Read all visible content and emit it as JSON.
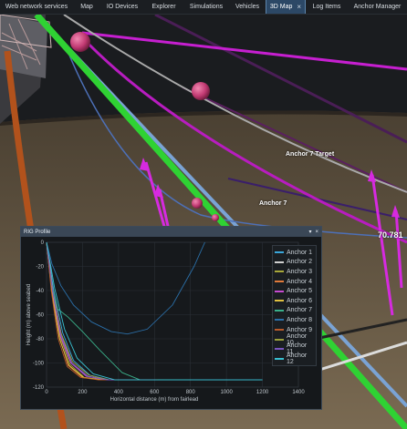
{
  "tabs": [
    {
      "label": "Web network services",
      "active": false
    },
    {
      "label": "Map",
      "active": false
    },
    {
      "label": "IO Devices",
      "active": false
    },
    {
      "label": "Explorer",
      "active": false
    },
    {
      "label": "Simulations",
      "active": false
    },
    {
      "label": "Vehicles",
      "active": false
    },
    {
      "label": "3D Map",
      "active": true,
      "close_icon": "×"
    },
    {
      "label": "Log Items",
      "active": false
    },
    {
      "label": "Anchor Manager",
      "active": false
    }
  ],
  "scene": {
    "labels": {
      "anchor7_target": "Anchor 7 Target",
      "anchor7": "Anchor 7",
      "distance_readout": "70.781"
    },
    "colors": {
      "ground": "#5a4c3c",
      "sky": "#1a1c1f",
      "chain_green": "#2fd233",
      "cable_blue": "#7aa3d4",
      "cable_magenta": "#c61fd0",
      "buoy": "#c23a73"
    }
  },
  "rig_panel": {
    "title": "RIG Profile",
    "controls": {
      "dropdown": "▾",
      "close": "×"
    }
  },
  "chart_data": {
    "type": "line",
    "title": "",
    "xlabel": "Horizontal distance (m) from fairlead",
    "ylabel": "Height (m) above seabed",
    "xlim": [
      0,
      1400
    ],
    "ylim": [
      -120,
      0
    ],
    "xticks": [
      0,
      200,
      400,
      600,
      800,
      1000,
      1200,
      1400
    ],
    "yticks": [
      0,
      -20,
      -40,
      -60,
      -80,
      -100,
      -120
    ],
    "grid": true,
    "legend_position": "top-right",
    "series": [
      {
        "name": "Anchor 1",
        "color": "#3aa6d9",
        "points": [
          [
            0,
            0
          ],
          [
            40,
            -40
          ],
          [
            90,
            -75
          ],
          [
            150,
            -98
          ],
          [
            240,
            -110
          ],
          [
            350,
            -114
          ],
          [
            700,
            -114
          ],
          [
            1200,
            -114
          ]
        ]
      },
      {
        "name": "Anchor 2",
        "color": "#d0d0d0",
        "points": [
          [
            0,
            0
          ],
          [
            35,
            -40
          ],
          [
            80,
            -75
          ],
          [
            140,
            -100
          ],
          [
            230,
            -111
          ],
          [
            340,
            -114
          ],
          [
            650,
            -114
          ]
        ]
      },
      {
        "name": "Anchor 3",
        "color": "#a8a83a",
        "points": [
          [
            0,
            0
          ],
          [
            30,
            -40
          ],
          [
            75,
            -78
          ],
          [
            130,
            -101
          ],
          [
            210,
            -112
          ],
          [
            320,
            -114
          ],
          [
            560,
            -114
          ]
        ]
      },
      {
        "name": "Anchor 4",
        "color": "#e07a3a",
        "points": [
          [
            0,
            0
          ],
          [
            28,
            -40
          ],
          [
            70,
            -78
          ],
          [
            120,
            -102
          ],
          [
            200,
            -112
          ],
          [
            300,
            -114
          ],
          [
            500,
            -114
          ]
        ]
      },
      {
        "name": "Anchor 5",
        "color": "#c64bd0",
        "points": [
          [
            0,
            0
          ],
          [
            32,
            -40
          ],
          [
            78,
            -78
          ],
          [
            135,
            -100
          ],
          [
            220,
            -111
          ],
          [
            330,
            -114
          ],
          [
            600,
            -114
          ]
        ]
      },
      {
        "name": "Anchor 6",
        "color": "#e0c040",
        "points": [
          [
            0,
            0
          ],
          [
            30,
            -42
          ],
          [
            72,
            -80
          ],
          [
            125,
            -102
          ],
          [
            205,
            -112
          ],
          [
            310,
            -114
          ],
          [
            520,
            -114
          ]
        ]
      },
      {
        "name": "Anchor 7",
        "color": "#3ab08a",
        "points": [
          [
            0,
            0
          ],
          [
            20,
            -30
          ],
          [
            60,
            -55
          ],
          [
            120,
            -62
          ],
          [
            200,
            -74
          ],
          [
            300,
            -90
          ],
          [
            420,
            -108
          ],
          [
            520,
            -114
          ],
          [
            800,
            -114
          ]
        ]
      },
      {
        "name": "Anchor 8",
        "color": "#2b6fa8",
        "points": [
          [
            0,
            0
          ],
          [
            30,
            -18
          ],
          [
            80,
            -36
          ],
          [
            150,
            -52
          ],
          [
            250,
            -66
          ],
          [
            360,
            -74
          ],
          [
            450,
            -76
          ],
          [
            560,
            -72
          ],
          [
            700,
            -52
          ],
          [
            820,
            -20
          ],
          [
            880,
            0
          ]
        ]
      },
      {
        "name": "Anchor 9",
        "color": "#b85a2a",
        "points": [
          [
            0,
            0
          ],
          [
            26,
            -40
          ],
          [
            65,
            -80
          ],
          [
            115,
            -103
          ],
          [
            190,
            -112
          ],
          [
            290,
            -114
          ],
          [
            480,
            -114
          ]
        ]
      },
      {
        "name": "Anchor 10",
        "color": "#9aa03a",
        "points": [
          [
            0,
            0
          ],
          [
            34,
            -40
          ],
          [
            82,
            -76
          ],
          [
            145,
            -99
          ],
          [
            235,
            -110
          ],
          [
            345,
            -114
          ],
          [
            620,
            -114
          ]
        ]
      },
      {
        "name": "Anchor 11",
        "color": "#7a55c0",
        "points": [
          [
            0,
            0
          ],
          [
            33,
            -40
          ],
          [
            80,
            -77
          ],
          [
            140,
            -100
          ],
          [
            228,
            -111
          ],
          [
            338,
            -114
          ],
          [
            610,
            -114
          ]
        ]
      },
      {
        "name": "Anchor 12",
        "color": "#38c0d0",
        "points": [
          [
            0,
            0
          ],
          [
            45,
            -38
          ],
          [
            100,
            -72
          ],
          [
            170,
            -96
          ],
          [
            260,
            -109
          ],
          [
            380,
            -114
          ],
          [
            1200,
            -114
          ]
        ]
      }
    ]
  }
}
